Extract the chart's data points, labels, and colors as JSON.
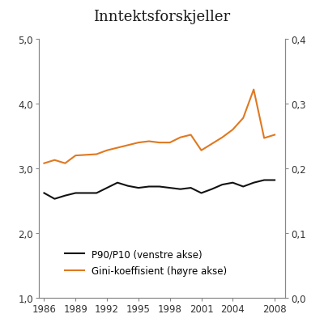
{
  "title": "Inntektsforskjeller",
  "years": [
    1986,
    1987,
    1988,
    1989,
    1990,
    1991,
    1992,
    1993,
    1994,
    1995,
    1996,
    1997,
    1998,
    1999,
    2000,
    2001,
    2002,
    2003,
    2004,
    2005,
    2006,
    2007,
    2008
  ],
  "p90p10": [
    2.62,
    2.53,
    2.58,
    2.62,
    2.62,
    2.62,
    2.7,
    2.78,
    2.73,
    2.7,
    2.72,
    2.72,
    2.7,
    2.68,
    2.7,
    2.62,
    2.68,
    2.75,
    2.78,
    2.72,
    2.78,
    2.82,
    2.82
  ],
  "gini": [
    0.208,
    0.213,
    0.208,
    0.22,
    0.221,
    0.222,
    0.228,
    0.232,
    0.236,
    0.24,
    0.242,
    0.24,
    0.24,
    0.248,
    0.252,
    0.228,
    0.238,
    0.248,
    0.26,
    0.278,
    0.322,
    0.247,
    0.252
  ],
  "p90p10_color": "#111111",
  "gini_color": "#e07820",
  "left_ylim": [
    1.0,
    5.0
  ],
  "right_ylim": [
    0.0,
    0.4
  ],
  "left_yticks": [
    1.0,
    2.0,
    3.0,
    4.0,
    5.0
  ],
  "right_yticks": [
    0.0,
    0.1,
    0.2,
    0.3,
    0.4
  ],
  "left_yticklabels": [
    "1,0",
    "2,0",
    "3,0",
    "4,0",
    "5,0"
  ],
  "right_yticklabels": [
    "0,0",
    "0,1",
    "0,2",
    "0,3",
    "0,4"
  ],
  "xticks": [
    1986,
    1989,
    1992,
    1995,
    1998,
    2001,
    2004,
    2008
  ],
  "legend_p90p10": "P90/P10 (venstre akse)",
  "legend_gini": "Gini-koeffisient (høyre akse)",
  "line_width": 1.5,
  "background_color": "#ffffff",
  "title_fontsize": 13,
  "tick_fontsize": 8.5,
  "legend_fontsize": 8.5
}
